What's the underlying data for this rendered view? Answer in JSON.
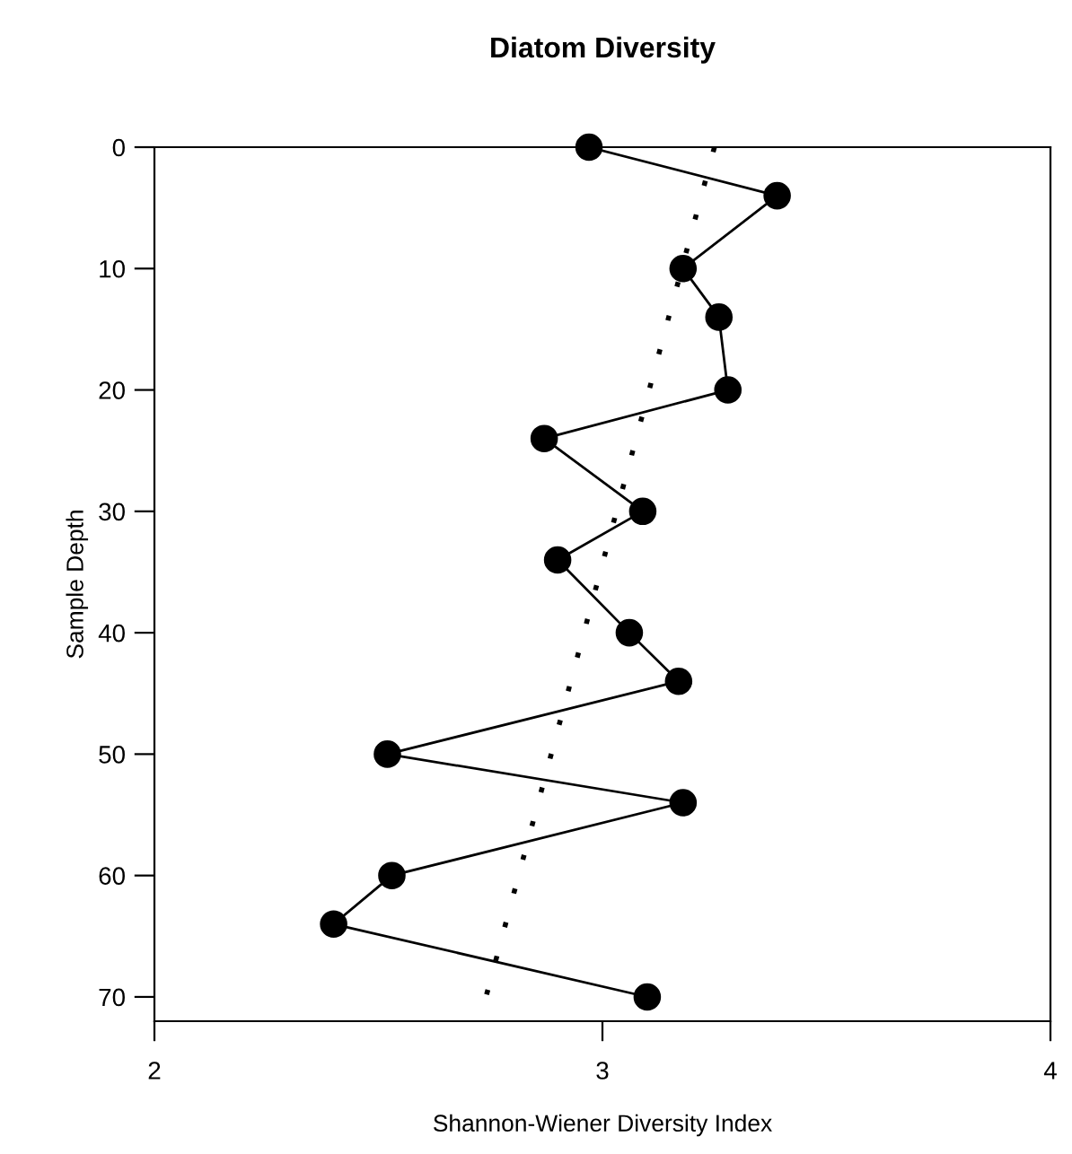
{
  "chart_data": {
    "type": "line",
    "title": "Diatom Diversity",
    "xlabel": "Shannon-Wiener Diversity Index",
    "ylabel": "Sample Depth",
    "xlim": [
      2,
      4
    ],
    "xticks": [
      2,
      3,
      4
    ],
    "ylim": [
      72,
      0
    ],
    "yticks": [
      0,
      10,
      20,
      30,
      40,
      50,
      60,
      70
    ],
    "grid": false,
    "series": [
      {
        "color": "#000000",
        "marker": "circle",
        "line_style": "solid",
        "x": [
          2.97,
          3.39,
          3.18,
          3.26,
          3.28,
          2.87,
          3.09,
          2.9,
          3.06,
          3.17,
          2.52,
          3.18,
          2.53,
          2.4,
          3.1
        ],
        "values": [
          0,
          4,
          10,
          14,
          20,
          24,
          30,
          34,
          40,
          44,
          50,
          54,
          60,
          64,
          70
        ]
      },
      {
        "color": "#000000",
        "marker": "none",
        "line_style": "dotted",
        "x": [
          3.25,
          2.74
        ],
        "values": [
          0,
          70
        ]
      }
    ]
  }
}
